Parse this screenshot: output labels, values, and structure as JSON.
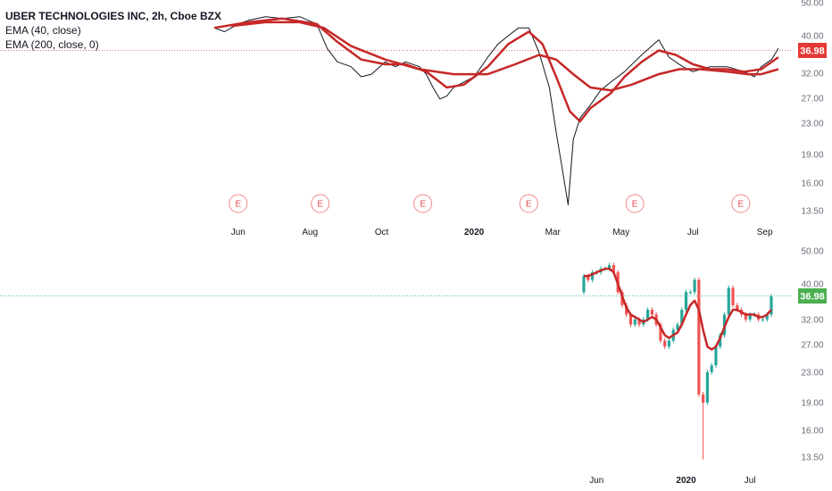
{
  "legend": {
    "title": "UBER TECHNOLOGIES INC, 2h, Cboe BZX",
    "ema1": "EMA (40, close)",
    "ema2": "EMA (200, close, 0)"
  },
  "colors": {
    "up": "#26a69a",
    "down": "#ef5350",
    "price_line": "#131722",
    "ema": "#c62828",
    "last_price_top_bg": "#e53935",
    "last_price_bottom_bg": "#4caf50",
    "top_last_line": "#e57373",
    "bottom_last_line": "#4db6ac"
  },
  "icons": {
    "earnings": "circled-letter-e"
  },
  "chart_data": [
    {
      "type": "line",
      "title": "UBER TECHNOLOGIES INC, 2h, Cboe BZX",
      "timeframe": "2h",
      "scale": "log",
      "ylim": [
        12.8,
        52
      ],
      "y_ticks": [
        "50.00",
        "40.00",
        "36.98",
        "32.00",
        "27.00",
        "23.00",
        "19.00",
        "16.00",
        "13.50"
      ],
      "x_labels": [
        "Jun",
        "Aug",
        "Oct",
        "2020",
        "Mar",
        "May",
        "Jul",
        "Sep"
      ],
      "x_label_index": [
        0.7,
        2.8,
        4.9,
        7.6,
        9.9,
        11.9,
        14.0,
        16.1
      ],
      "last_price": "36.98",
      "earnings_marker": "E",
      "earnings_index": [
        0.7,
        3.1,
        6.1,
        9.2,
        12.3,
        15.4
      ],
      "series": [
        {
          "name": "Price",
          "x": [
            0,
            0.3,
            0.7,
            1.0,
            1.5,
            2.0,
            2.5,
            3.0,
            3.3,
            3.6,
            4.0,
            4.3,
            4.6,
            5.0,
            5.3,
            5.6,
            6.0,
            6.2,
            6.4,
            6.6,
            6.8,
            7.0,
            7.3,
            7.6,
            8.0,
            8.3,
            8.6,
            8.9,
            9.2,
            9.5,
            9.8,
            10.0,
            10.2,
            10.35,
            10.5,
            10.7,
            11.0,
            11.3,
            11.6,
            12.0,
            12.5,
            13.0,
            13.3,
            13.7,
            14.0,
            14.5,
            15.0,
            15.5,
            15.8,
            16.0,
            16.3,
            16.5
          ],
          "values": [
            42,
            41,
            43,
            44,
            45,
            44.5,
            45,
            43,
            37,
            34,
            33,
            31,
            31.5,
            34,
            33,
            34,
            33,
            31.5,
            29,
            27,
            27.5,
            29,
            30,
            31,
            35,
            38,
            40,
            42,
            42,
            36,
            29,
            22,
            17,
            14,
            21,
            24,
            26,
            28.5,
            30,
            32,
            35.5,
            39,
            35,
            33,
            32,
            33,
            33,
            32,
            31,
            33,
            34.5,
            37
          ]
        },
        {
          "name": "EMA (40, close)",
          "x": [
            0,
            1.0,
            2.0,
            3.0,
            3.6,
            4.3,
            5.0,
            5.6,
            6.2,
            6.8,
            7.3,
            8.0,
            8.6,
            9.2,
            9.6,
            10.0,
            10.4,
            10.7,
            11.0,
            11.6,
            12.0,
            12.5,
            13.0,
            13.5,
            14.0,
            14.5,
            15.0,
            15.5,
            16.0,
            16.5
          ],
          "values": [
            42,
            43.5,
            44.5,
            43,
            38.5,
            34.5,
            33.5,
            33.5,
            32,
            29,
            29.5,
            33,
            38,
            41,
            38,
            31,
            25,
            23.5,
            25.5,
            28,
            31,
            34,
            36.5,
            35.5,
            33.5,
            32.5,
            32.5,
            32,
            32.5,
            35
          ]
        },
        {
          "name": "EMA (200, close, 0)",
          "x": [
            0.5,
            1.5,
            2.5,
            3.2,
            4.0,
            5.0,
            6.0,
            7.0,
            8.0,
            8.8,
            9.5,
            10.0,
            10.5,
            11.0,
            11.6,
            12.2,
            13.0,
            13.6,
            14.2,
            15.0,
            15.6,
            16.0,
            16.5
          ],
          "values": [
            42.5,
            43.5,
            43.5,
            42,
            37.5,
            34.5,
            32.5,
            31.5,
            31.5,
            33.5,
            35.5,
            34.5,
            31.5,
            29,
            28.5,
            29.5,
            31.5,
            32.5,
            32.5,
            32,
            31.5,
            31.5,
            32.5
          ]
        }
      ]
    },
    {
      "type": "candlestick",
      "scale": "log",
      "ylim": [
        12.8,
        52
      ],
      "y_ticks": [
        "50.00",
        "40.00",
        "36.98",
        "32.00",
        "27.00",
        "23.00",
        "19.00",
        "16.00",
        "13.50"
      ],
      "x_labels": [
        "Jun",
        "2020",
        "Jul"
      ],
      "x_label_index": [
        3,
        24,
        39
      ],
      "last_price": "36.98",
      "candles": {
        "open": [
          38,
          42,
          41,
          43,
          43,
          44,
          44,
          45,
          43,
          38,
          35,
          33,
          31,
          32,
          31,
          32,
          34,
          33,
          31,
          28,
          27,
          28,
          30,
          31,
          34,
          38,
          38,
          41,
          20,
          19,
          23,
          24,
          27,
          29,
          33,
          39,
          35,
          34,
          33,
          32,
          33,
          33,
          32,
          32,
          33
        ],
        "close": [
          42,
          41,
          43,
          43,
          44,
          44,
          45,
          43,
          38,
          35,
          33,
          31,
          32,
          31,
          32,
          34,
          33,
          31,
          28,
          27,
          28,
          30,
          31,
          34,
          38,
          38,
          41,
          20,
          19,
          23,
          24,
          27,
          29,
          33,
          39,
          35,
          34,
          33,
          32,
          33,
          33,
          32,
          32,
          33,
          37
        ]
      },
      "series": [
        {
          "name": "EMA",
          "values": [
            42,
            42,
            42.5,
            43,
            43.5,
            44,
            44,
            43,
            40,
            37,
            34.5,
            33,
            32.5,
            32,
            31.5,
            32,
            32.5,
            32,
            30.5,
            29,
            28.5,
            29,
            29.5,
            31,
            33,
            35,
            36,
            34,
            30,
            27,
            26.5,
            27,
            28.5,
            30.5,
            32.5,
            34,
            34,
            33.5,
            33,
            33,
            33,
            32.5,
            32.5,
            33,
            34
          ]
        }
      ]
    }
  ]
}
